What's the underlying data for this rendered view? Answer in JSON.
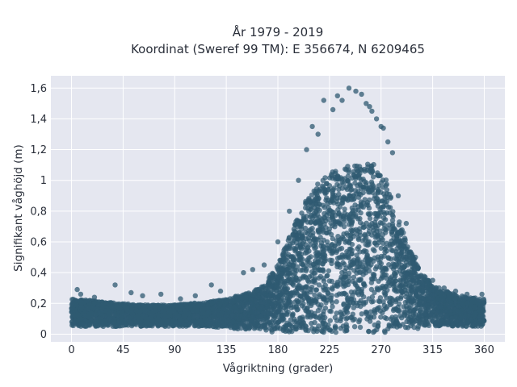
{
  "chart_data": {
    "type": "scatter",
    "title": "År 1979 - 2019",
    "subtitle": "Koordinat (Sweref 99 TM): E 356674, N 6209465",
    "xlabel": "Vågriktning (grader)",
    "ylabel": "Signifikant våghöjd (m)",
    "xlim": [
      -18,
      378
    ],
    "ylim": [
      -0.05,
      1.68
    ],
    "xticks": [
      0,
      45,
      90,
      135,
      180,
      225,
      270,
      315,
      360
    ],
    "xtick_labels": [
      "0",
      "45",
      "90",
      "135",
      "180",
      "225",
      "270",
      "315",
      "360"
    ],
    "yticks": [
      0,
      0.2,
      0.4,
      0.6,
      0.8,
      1.0,
      1.2,
      1.4,
      1.6
    ],
    "ytick_labels": [
      "0",
      "0,2",
      "0,4",
      "0,6",
      "0,8",
      "1",
      "1,2",
      "1,4",
      "1,6"
    ],
    "grid": true,
    "marker_color": "#2f5a72",
    "background_color": "#e5e7f0",
    "series": [
      {
        "envelope": {
          "x": [
            0,
            15,
            30,
            45,
            60,
            75,
            90,
            105,
            120,
            135,
            150,
            165,
            180,
            195,
            205,
            215,
            225,
            235,
            245,
            255,
            265,
            275,
            285,
            295,
            305,
            315,
            330,
            345,
            360
          ],
          "low": [
            0.05,
            0.05,
            0.05,
            0.05,
            0.05,
            0.05,
            0.05,
            0.05,
            0.05,
            0.04,
            0.03,
            0.02,
            0.01,
            0.01,
            0.01,
            0.01,
            0.01,
            0.01,
            0.01,
            0.01,
            0.01,
            0.01,
            0.02,
            0.03,
            0.04,
            0.05,
            0.05,
            0.05,
            0.05
          ],
          "high": [
            0.23,
            0.22,
            0.21,
            0.2,
            0.19,
            0.19,
            0.19,
            0.2,
            0.21,
            0.23,
            0.26,
            0.3,
            0.45,
            0.72,
            0.88,
            0.98,
            1.05,
            1.08,
            1.1,
            1.12,
            1.1,
            1.0,
            0.75,
            0.55,
            0.4,
            0.32,
            0.27,
            0.24,
            0.23
          ]
        },
        "outliers": [
          [
            5,
            0.29
          ],
          [
            8,
            0.26
          ],
          [
            20,
            0.24
          ],
          [
            38,
            0.32
          ],
          [
            52,
            0.27
          ],
          [
            62,
            0.25
          ],
          [
            78,
            0.26
          ],
          [
            95,
            0.23
          ],
          [
            108,
            0.25
          ],
          [
            122,
            0.32
          ],
          [
            130,
            0.28
          ],
          [
            150,
            0.4
          ],
          [
            158,
            0.42
          ],
          [
            168,
            0.45
          ],
          [
            180,
            0.6
          ],
          [
            190,
            0.8
          ],
          [
            198,
            1.0
          ],
          [
            205,
            1.2
          ],
          [
            210,
            1.35
          ],
          [
            215,
            1.3
          ],
          [
            220,
            1.52
          ],
          [
            228,
            1.46
          ],
          [
            232,
            1.55
          ],
          [
            236,
            1.52
          ],
          [
            242,
            1.6
          ],
          [
            248,
            1.58
          ],
          [
            253,
            1.56
          ],
          [
            257,
            1.5
          ],
          [
            260,
            1.48
          ],
          [
            262,
            1.45
          ],
          [
            266,
            1.4
          ],
          [
            270,
            1.35
          ],
          [
            272,
            1.34
          ],
          [
            276,
            1.25
          ],
          [
            280,
            1.18
          ],
          [
            285,
            0.9
          ],
          [
            292,
            0.72
          ],
          [
            300,
            0.5
          ],
          [
            315,
            0.35
          ],
          [
            325,
            0.3
          ],
          [
            335,
            0.28
          ],
          [
            345,
            0.26
          ],
          [
            358,
            0.26
          ]
        ]
      }
    ]
  }
}
